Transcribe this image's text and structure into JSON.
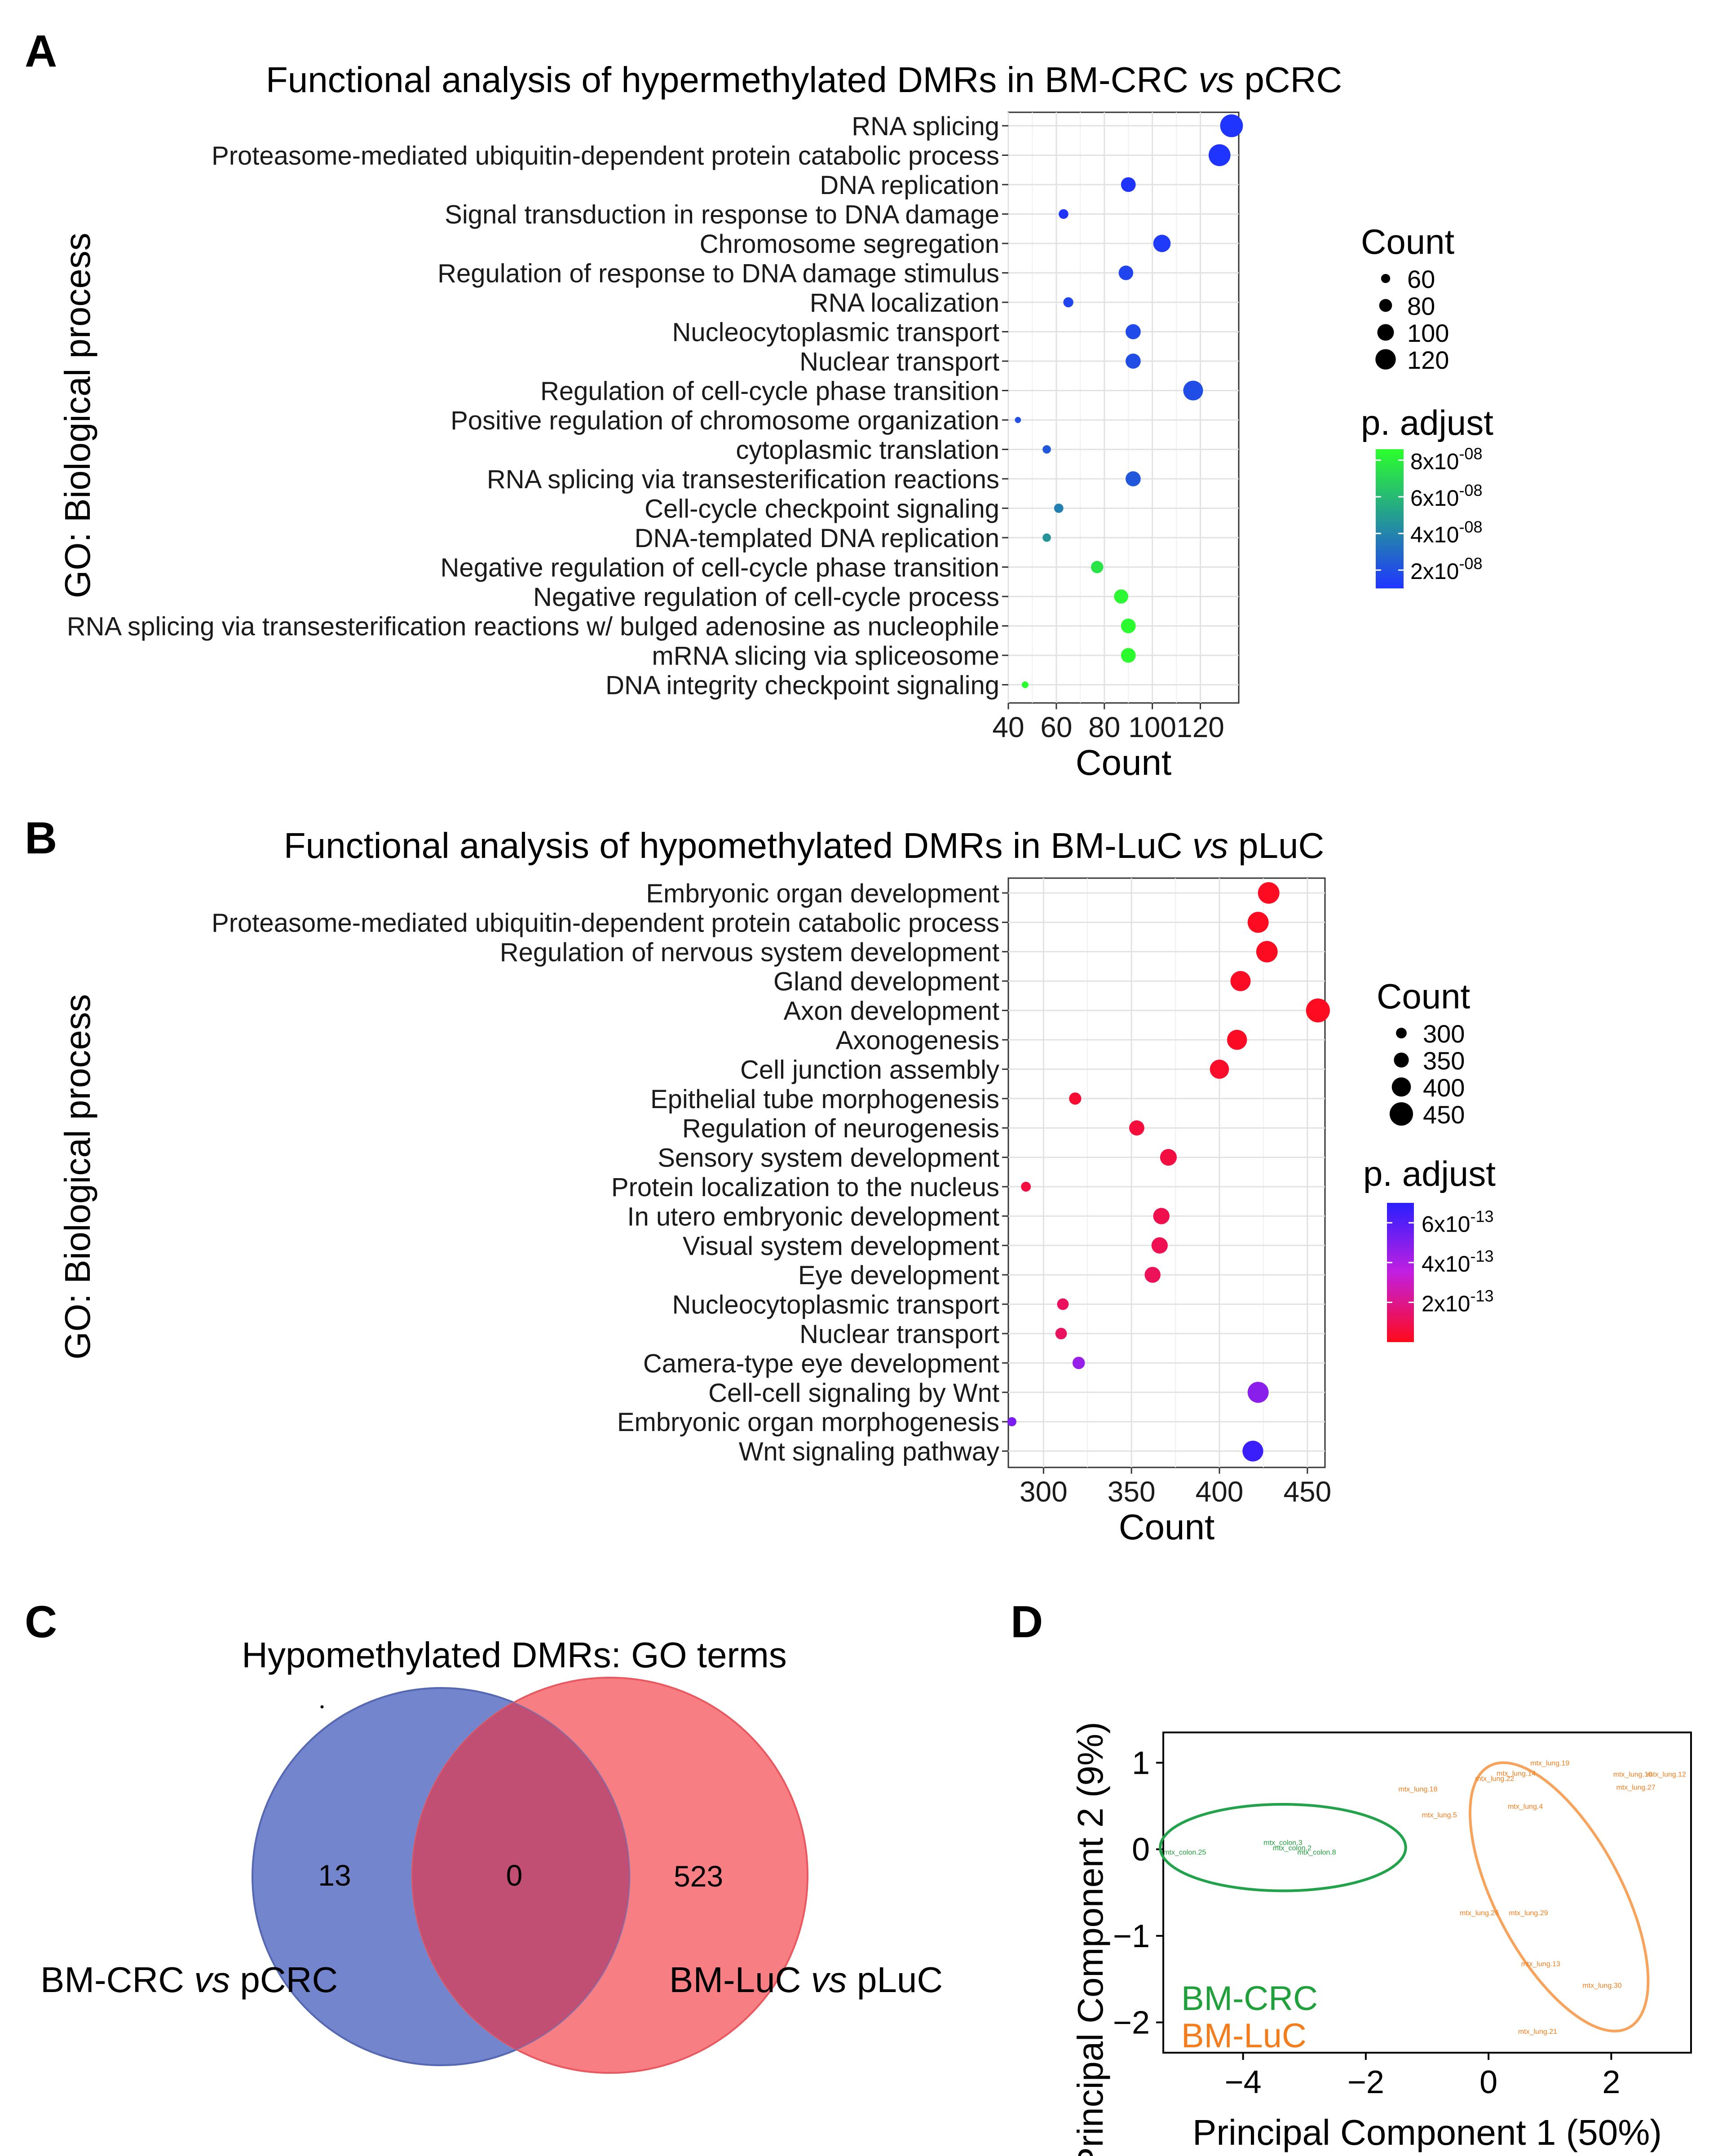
{
  "panels": {
    "A": {
      "letter": "A",
      "title_prefix": "Functional analysis of hypermethylated DMRs in BM-CRC ",
      "title_vs": "vs",
      "title_suffix": " pCRC",
      "y_axis_label": "GO: Biological process",
      "count_legend_title": "Count",
      "padj_legend_title": "p. adjust",
      "count_legend_labels": [
        "60",
        "80",
        "100",
        "120"
      ],
      "padj_legend_labels": [
        {
          "base": "8x10",
          "exp": "-08"
        },
        {
          "base": "6x10",
          "exp": "-08"
        },
        {
          "base": "4x10",
          "exp": "-08"
        },
        {
          "base": "2x10",
          "exp": "-08"
        }
      ],
      "colors": {
        "low": "#1f35ff",
        "high": "#2bff2b"
      }
    },
    "B": {
      "letter": "B",
      "title_prefix": "Functional analysis of hypomethylated DMRs in BM-LuC ",
      "title_vs": "vs",
      "title_suffix": " pLuC",
      "y_axis_label": "GO: Biological process",
      "count_legend_title": "Count",
      "padj_legend_title": "p. adjust",
      "count_legend_labels": [
        "300",
        "350",
        "400",
        "450"
      ],
      "padj_legend_labels": [
        {
          "base": "6x10",
          "exp": "-13"
        },
        {
          "base": "4x10",
          "exp": "-13"
        },
        {
          "base": "2x10",
          "exp": "-13"
        }
      ],
      "colors": {
        "low": "#ff0a1a",
        "mid": "#c21fe0",
        "high": "#2a1fff"
      }
    },
    "C": {
      "letter": "C",
      "title": "Hypomethylated DMRs: GO terms",
      "left_count": "13",
      "overlap_count": "0",
      "right_count": "523",
      "left_label_prefix": "BM-CRC ",
      "left_label_vs": "vs",
      "left_label_suffix": " pCRC",
      "right_label_prefix": "BM-LuC ",
      "right_label_vs": "vs",
      "right_label_suffix": " pLuC",
      "colors": {
        "left": "#7385cc",
        "right": "#f77e82",
        "overlap": "#c14f73"
      }
    },
    "D": {
      "letter": "D",
      "legend": [
        "BM-CRC",
        "BM-LuC"
      ],
      "colors": {
        "crc": "#22a24a",
        "luc": "#f7a35c",
        "crc_text": "#1fa03a",
        "luc_text": "#f37d1c"
      }
    }
  },
  "chart_data": [
    {
      "type": "scatter",
      "subtype": "dotplot",
      "title": "Functional analysis of hypermethylated DMRs in BM-CRC vs pCRC",
      "xlabel": "Count",
      "ylabel": "GO: Biological process",
      "xlim": [
        40,
        136
      ],
      "xticks": [
        40,
        60,
        80,
        100,
        120
      ],
      "terms": [
        {
          "label": "RNA splicing",
          "count": 133,
          "padj": 3e-09
        },
        {
          "label": "Proteasome-mediated ubiquitin-dependent protein catabolic process",
          "count": 128,
          "padj": 4e-09
        },
        {
          "label": "DNA replication",
          "count": 90,
          "padj": 1e-08
        },
        {
          "label": "Signal transduction in response to DNA damage",
          "count": 63,
          "padj": 1e-08
        },
        {
          "label": "Chromosome segregation",
          "count": 104,
          "padj": 1.2e-08
        },
        {
          "label": "Regulation of response to DNA damage stimulus",
          "count": 89,
          "padj": 1.6e-08
        },
        {
          "label": "RNA localization",
          "count": 65,
          "padj": 1.6e-08
        },
        {
          "label": "Nucleocytoplasmic transport",
          "count": 92,
          "padj": 1.8e-08
        },
        {
          "label": "Nuclear transport",
          "count": 92,
          "padj": 1.9e-08
        },
        {
          "label": "Regulation of cell-cycle phase transition",
          "count": 117,
          "padj": 1.9e-08
        },
        {
          "label": "Positive regulation of chromosome organization",
          "count": 44,
          "padj": 2e-08
        },
        {
          "label": "cytoplasmic translation",
          "count": 56,
          "padj": 2.3e-08
        },
        {
          "label": "RNA splicing via transesterification reactions",
          "count": 92,
          "padj": 2.3e-08
        },
        {
          "label": "Cell-cycle checkpoint signaling",
          "count": 61,
          "padj": 3.8e-08
        },
        {
          "label": "DNA-templated DNA replication",
          "count": 56,
          "padj": 4.6e-08
        },
        {
          "label": "Negative regulation of cell-cycle phase transition",
          "count": 77,
          "padj": 7.6e-08
        },
        {
          "label": "Negative regulation of cell-cycle process",
          "count": 87,
          "padj": 8.3e-08
        },
        {
          "label": "RNA splicing via transesterification reactions w/ bulged adenosine as nucleophile",
          "count": 90,
          "padj": 8.5e-08
        },
        {
          "label": "mRNA slicing via spliceosome",
          "count": 90,
          "padj": 8.5e-08
        },
        {
          "label": "DNA integrity checkpoint signaling",
          "count": 47,
          "padj": 8.5e-08
        }
      ],
      "size_legend": [
        60,
        80,
        100,
        120
      ],
      "color_legend": {
        "min": 1e-08,
        "max": 8.6e-08,
        "ticks": [
          8e-08,
          6e-08,
          4e-08,
          2e-08
        ]
      }
    },
    {
      "type": "scatter",
      "subtype": "dotplot",
      "title": "Functional analysis of hypomethylated DMRs in BM-LuC vs pLuC",
      "xlabel": "Count",
      "ylabel": "GO: Biological process",
      "xlim": [
        280,
        460
      ],
      "xticks": [
        300,
        350,
        400,
        450
      ],
      "terms": [
        {
          "label": "Embryonic organ development",
          "count": 428,
          "padj": 1e-14
        },
        {
          "label": "Proteasome-mediated ubiquitin-dependent protein catabolic process",
          "count": 422,
          "padj": 1e-14
        },
        {
          "label": "Regulation of nervous system development",
          "count": 427,
          "padj": 1e-14
        },
        {
          "label": "Gland development",
          "count": 412,
          "padj": 2e-14
        },
        {
          "label": "Axon development",
          "count": 456,
          "padj": 1e-14
        },
        {
          "label": "Axonogenesis",
          "count": 410,
          "padj": 2e-14
        },
        {
          "label": "Cell junction assembly",
          "count": 400,
          "padj": 3e-14
        },
        {
          "label": "Epithelial tube morphogenesis",
          "count": 318,
          "padj": 4e-14
        },
        {
          "label": "Regulation of neurogenesis",
          "count": 353,
          "padj": 6e-14
        },
        {
          "label": "Sensory system development",
          "count": 371,
          "padj": 7e-14
        },
        {
          "label": "Protein localization to the nucleus",
          "count": 290,
          "padj": 7e-14
        },
        {
          "label": "In utero embryonic development",
          "count": 367,
          "padj": 9e-14
        },
        {
          "label": "Visual system development",
          "count": 366,
          "padj": 1e-13
        },
        {
          "label": "Eye development",
          "count": 362,
          "padj": 1.1e-13
        },
        {
          "label": "Nucleocytoplasmic transport",
          "count": 311,
          "padj": 1.2e-13
        },
        {
          "label": "Nuclear transport",
          "count": 310,
          "padj": 1.2e-13
        },
        {
          "label": "Camera-type eye development",
          "count": 320,
          "padj": 4.5e-13
        },
        {
          "label": "Cell-cell signaling by Wnt",
          "count": 422,
          "padj": 4.8e-13
        },
        {
          "label": "Embryonic organ morphogenesis",
          "count": 282,
          "padj": 5.2e-13
        },
        {
          "label": "Wnt signaling pathway",
          "count": 419,
          "padj": 6.6e-13
        }
      ],
      "size_legend": [
        300,
        350,
        400,
        450
      ],
      "color_legend": {
        "min": 0.0,
        "max": 7e-13,
        "ticks": [
          6e-13,
          4e-13,
          2e-13
        ]
      }
    },
    {
      "type": "venn",
      "title": "Hypomethylated DMRs: GO terms",
      "sets": [
        {
          "name": "BM-CRC vs pCRC",
          "only": 13
        },
        {
          "name": "BM-LuC vs pLuC",
          "only": 523
        }
      ],
      "overlap": 0
    },
    {
      "type": "scatter",
      "subtype": "pca",
      "xlabel": "Principal Component 1 (50%)",
      "ylabel": "Principal Component 2 (9%)",
      "xlim": [
        -5.3,
        3.3
      ],
      "ylim": [
        -2.35,
        1.35
      ],
      "xticks": [
        -4,
        -2,
        0,
        2
      ],
      "yticks": [
        1,
        0,
        -1,
        -2
      ],
      "series": [
        {
          "name": "BM-CRC",
          "points": [
            {
              "label": "mtx_colon.3",
              "x": -3.35,
              "y": 0.08
            },
            {
              "label": "mtx_colon.2",
              "x": -3.2,
              "y": 0.02
            },
            {
              "label": "mtx_colon.25",
              "x": -4.95,
              "y": -0.03
            },
            {
              "label": "mtx_colon.8",
              "x": -2.8,
              "y": -0.03
            }
          ]
        },
        {
          "name": "BM-LuC",
          "points": [
            {
              "label": "mtx_lung.19",
              "x": 1.0,
              "y": 1.0
            },
            {
              "label": "mtx_lung.14",
              "x": 0.45,
              "y": 0.88
            },
            {
              "label": "mtx_lung.22",
              "x": 0.1,
              "y": 0.82
            },
            {
              "label": "mtx_lung.10",
              "x": 2.35,
              "y": 0.87
            },
            {
              "label": "mtx_lung.12",
              "x": 2.9,
              "y": 0.87
            },
            {
              "label": "mtx_lung.27",
              "x": 2.4,
              "y": 0.72
            },
            {
              "label": "mtx_lung.18",
              "x": -1.15,
              "y": 0.7
            },
            {
              "label": "mtx_lung.4",
              "x": 0.6,
              "y": 0.5
            },
            {
              "label": "mtx_lung.5",
              "x": -0.8,
              "y": 0.4
            },
            {
              "label": "mtx_lung.26",
              "x": -0.15,
              "y": -0.73
            },
            {
              "label": "mtx_lung.29",
              "x": 0.65,
              "y": -0.73
            },
            {
              "label": "mtx_lung.13",
              "x": 0.85,
              "y": -1.32
            },
            {
              "label": "mtx_lung.30",
              "x": 1.85,
              "y": -1.57
            },
            {
              "label": "mtx_lung.21",
              "x": 0.8,
              "y": -2.1
            }
          ]
        }
      ]
    }
  ]
}
